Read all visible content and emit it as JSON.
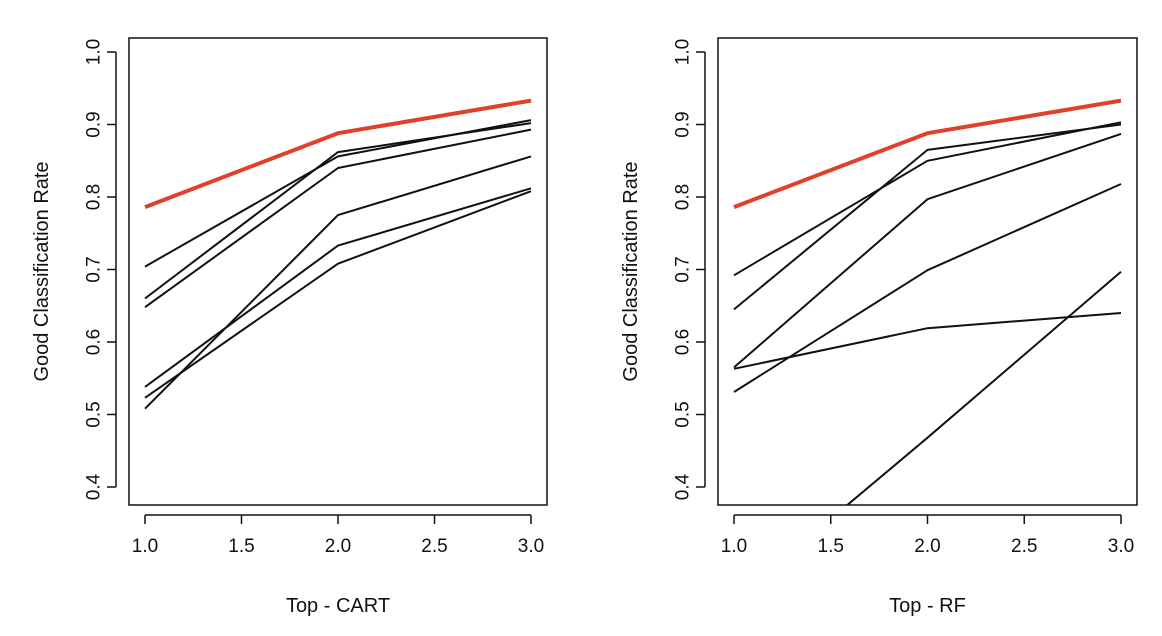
{
  "chart_data": [
    {
      "type": "line",
      "title": "",
      "xlabel": "Top - CART",
      "ylabel": "Good Classification Rate",
      "xlim": [
        1.0,
        3.0
      ],
      "ylim": [
        0.4,
        1.0
      ],
      "x": [
        1,
        2,
        3
      ],
      "x_ticks": [
        "1.0",
        "1.5",
        "2.0",
        "2.5",
        "3.0"
      ],
      "y_ticks": [
        "0.4",
        "0.5",
        "0.6",
        "0.7",
        "0.8",
        "0.9",
        "1.0"
      ],
      "highlight_color": "#e0412b",
      "line_color": "#111111",
      "series": [
        {
          "values": [
            0.786,
            0.888,
            0.933
          ],
          "highlight": true
        },
        {
          "values": [
            0.704,
            0.856,
            0.906
          ],
          "highlight": false
        },
        {
          "values": [
            0.66,
            0.862,
            0.902
          ],
          "highlight": false
        },
        {
          "values": [
            0.648,
            0.84,
            0.893
          ],
          "highlight": false
        },
        {
          "values": [
            0.538,
            0.733,
            0.812
          ],
          "highlight": false
        },
        {
          "values": [
            0.523,
            0.708,
            0.808
          ],
          "highlight": false
        },
        {
          "values": [
            0.508,
            0.775,
            0.856
          ],
          "highlight": false
        }
      ]
    },
    {
      "type": "line",
      "title": "",
      "xlabel": "Top - RF",
      "ylabel": "Good Classification Rate",
      "xlim": [
        1.0,
        3.0
      ],
      "ylim": [
        0.4,
        1.0
      ],
      "x": [
        1,
        2,
        3
      ],
      "x_ticks": [
        "1.0",
        "1.5",
        "2.0",
        "2.5",
        "3.0"
      ],
      "y_ticks": [
        "0.4",
        "0.5",
        "0.6",
        "0.7",
        "0.8",
        "0.9",
        "1.0"
      ],
      "highlight_color": "#e0412b",
      "line_color": "#111111",
      "series": [
        {
          "values": [
            0.786,
            0.888,
            0.933
          ],
          "highlight": true
        },
        {
          "values": [
            0.692,
            0.85,
            0.903
          ],
          "highlight": false
        },
        {
          "values": [
            0.645,
            0.865,
            0.9
          ],
          "highlight": false
        },
        {
          "values": [
            0.565,
            0.797,
            0.887
          ],
          "highlight": false
        },
        {
          "values": [
            0.563,
            0.619,
            0.64
          ],
          "highlight": false
        },
        {
          "values": [
            0.531,
            0.699,
            0.818
          ],
          "highlight": false
        },
        {
          "values": [
            0.244,
            0.468,
            0.697
          ],
          "highlight": false
        }
      ]
    }
  ]
}
